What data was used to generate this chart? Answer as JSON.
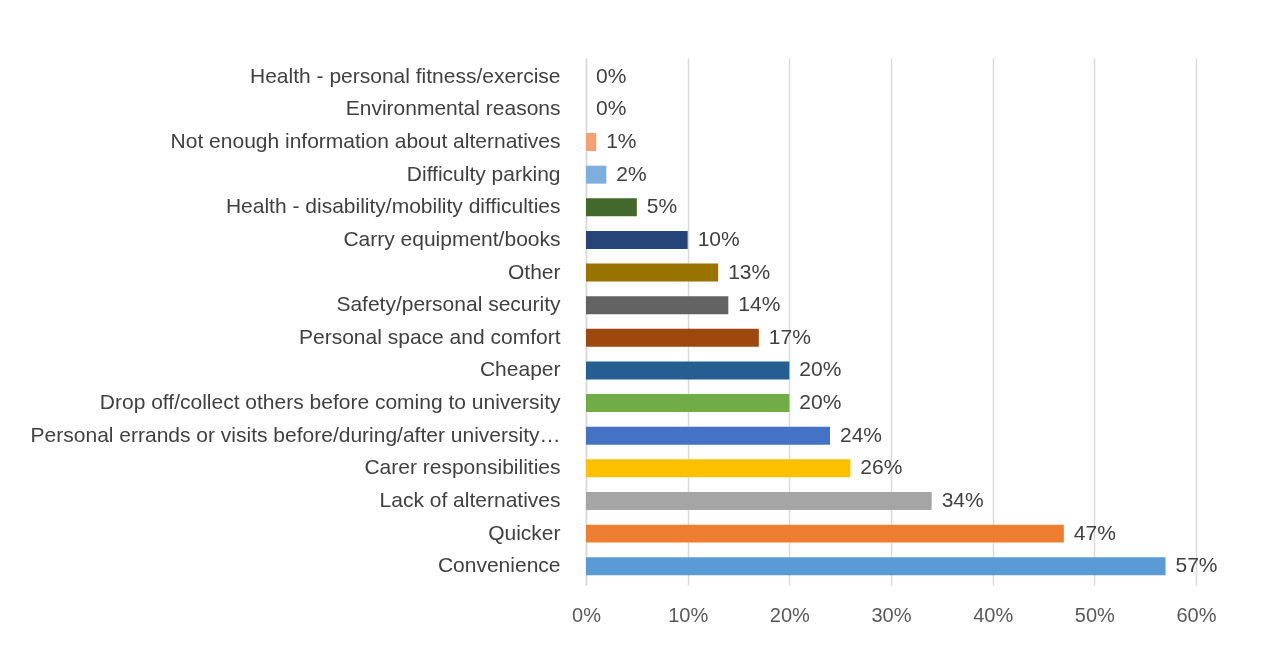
{
  "chart_data": {
    "type": "bar",
    "orientation": "horizontal",
    "categories": [
      "Health - personal fitness/exercise",
      "Environmental reasons",
      "Not enough information about alternatives",
      "Difficulty parking",
      "Health - disability/mobility difficulties",
      "Carry equipment/books",
      "Other",
      "Safety/personal security",
      "Personal space and comfort",
      "Cheaper",
      "Drop off/collect others before coming to university",
      "Personal errands or visits before/during/after university…",
      "Carer responsibilities",
      "Lack of alternatives",
      "Quicker",
      "Convenience"
    ],
    "values": [
      0,
      0,
      1,
      2,
      5,
      10,
      13,
      14,
      17,
      20,
      20,
      24,
      26,
      34,
      47,
      57
    ],
    "value_labels": [
      "0%",
      "0%",
      "1%",
      "2%",
      "5%",
      "10%",
      "13%",
      "14%",
      "17%",
      "20%",
      "20%",
      "24%",
      "26%",
      "34%",
      "47%",
      "57%"
    ],
    "colors": [
      "#bf9000",
      "#7f7f7f",
      "#f4a070",
      "#7cafdd",
      "#43682b",
      "#264478",
      "#997300",
      "#636363",
      "#9e480e",
      "#255e91",
      "#70ad47",
      "#4472c4",
      "#ffc000",
      "#a5a5a5",
      "#ed7d31",
      "#5b9bd5"
    ],
    "xlim": [
      0,
      60
    ],
    "xticks": [
      {
        "value": 0,
        "label": "0%"
      },
      {
        "value": 10,
        "label": "10%"
      },
      {
        "value": 20,
        "label": "20%"
      },
      {
        "value": 30,
        "label": "30%"
      },
      {
        "value": 40,
        "label": "40%"
      },
      {
        "value": 50,
        "label": "50%"
      },
      {
        "value": 60,
        "label": "60%"
      }
    ],
    "grid": "x"
  }
}
